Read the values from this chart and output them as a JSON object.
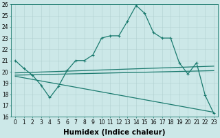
{
  "xlabel": "Humidex (Indice chaleur)",
  "xlim": [
    -0.5,
    23.5
  ],
  "ylim": [
    16,
    26
  ],
  "xticks": [
    0,
    1,
    2,
    3,
    4,
    5,
    6,
    7,
    8,
    9,
    10,
    11,
    12,
    13,
    14,
    15,
    16,
    17,
    18,
    19,
    20,
    21,
    22,
    23
  ],
  "yticks": [
    16,
    17,
    18,
    19,
    20,
    21,
    22,
    23,
    24,
    25,
    26
  ],
  "bg_color": "#cce8e8",
  "line_color": "#1a7a6e",
  "grid_color": "#b0d0d0",
  "lines": [
    {
      "x": [
        0,
        1,
        2,
        3,
        4,
        5,
        6,
        7,
        8,
        9,
        10,
        11,
        12,
        13,
        14,
        15,
        16,
        17,
        18,
        19,
        20,
        21,
        22,
        23
      ],
      "y": [
        21.0,
        20.3,
        19.7,
        18.8,
        17.7,
        18.7,
        20.1,
        21.0,
        21.0,
        21.5,
        23.0,
        23.2,
        23.2,
        24.5,
        25.9,
        25.2,
        23.5,
        23.0,
        23.0,
        20.8,
        19.8,
        20.8,
        17.9,
        16.3
      ],
      "has_marker": true
    },
    {
      "x": [
        0,
        23
      ],
      "y": [
        19.9,
        20.5
      ],
      "has_marker": false
    },
    {
      "x": [
        0,
        23
      ],
      "y": [
        19.7,
        20.1
      ],
      "has_marker": false
    },
    {
      "x": [
        0,
        23
      ],
      "y": [
        19.6,
        16.4
      ],
      "has_marker": false
    }
  ],
  "tick_fontsize": 5.5,
  "label_fontsize": 7.5,
  "linewidth": 0.9,
  "marker_size": 2.5
}
